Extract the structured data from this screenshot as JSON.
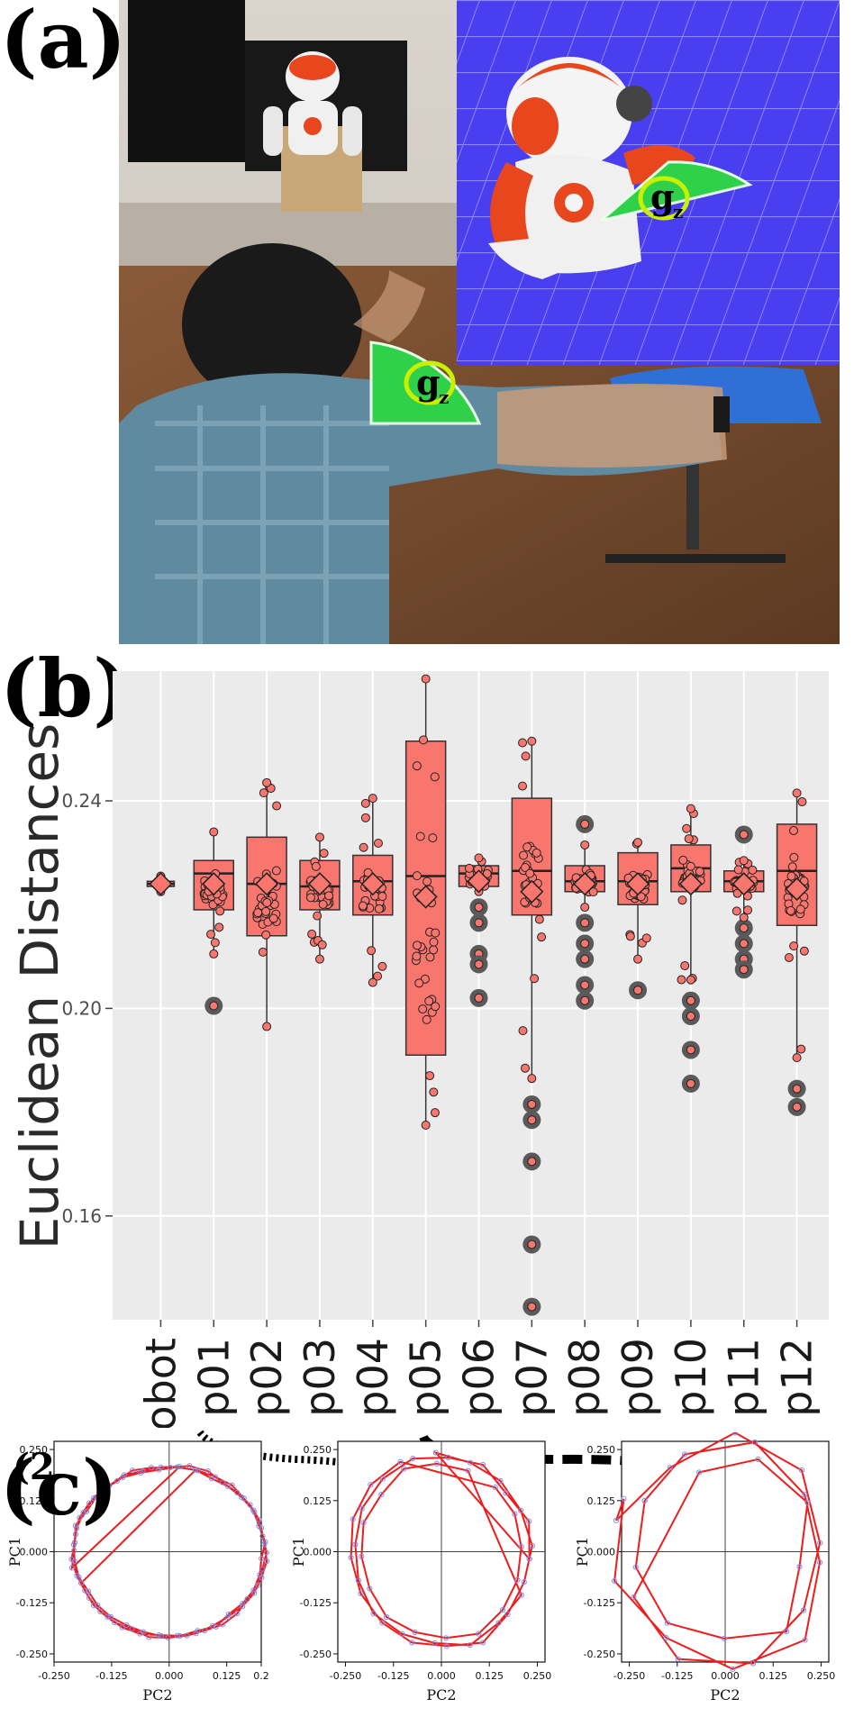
{
  "panel_labels": {
    "a": "(a)",
    "b": "(b)",
    "c": "(c)"
  },
  "photo": {
    "gz_label_sim": "g",
    "gz_label_sim_sub": "z",
    "gz_label_real": "g",
    "gz_label_real_sub": "z",
    "colors": {
      "sim_floor": "#4a3ff0",
      "gz_fill": "#2fd14a",
      "robot_orange": "#e8461d",
      "shirt": "#5f8aa0"
    }
  },
  "chart_data": [
    {
      "type": "box",
      "title": "",
      "xlabel": "",
      "ylabel": "Euclidean Distances",
      "ylim": [
        0.14,
        0.265
      ],
      "yticks": [
        "0.16",
        "0.20",
        "0.24"
      ],
      "categories": [
        "robot",
        "p01",
        "p02",
        "p03",
        "p04",
        "p05",
        "p06",
        "p07",
        "p08",
        "p09",
        "p10",
        "p11",
        "p12"
      ],
      "boxes": [
        {
          "cat": "robot",
          "q1": 0.2235,
          "median": 0.224,
          "q3": 0.2245,
          "whisker_low": 0.2225,
          "whisker_high": 0.2255,
          "mean": 0.224,
          "outliers": []
        },
        {
          "cat": "p01",
          "q1": 0.219,
          "median": 0.226,
          "q3": 0.2285,
          "whisker_low": 0.2105,
          "whisker_high": 0.234,
          "mean": 0.224,
          "outliers": [
            0.2005
          ]
        },
        {
          "cat": "p02",
          "q1": 0.214,
          "median": 0.224,
          "q3": 0.233,
          "whisker_low": 0.1965,
          "whisker_high": 0.2435,
          "mean": 0.224,
          "outliers": []
        },
        {
          "cat": "p03",
          "q1": 0.219,
          "median": 0.2235,
          "q3": 0.2285,
          "whisker_low": 0.2095,
          "whisker_high": 0.233,
          "mean": 0.224,
          "outliers": []
        },
        {
          "cat": "p04",
          "q1": 0.218,
          "median": 0.2245,
          "q3": 0.2295,
          "whisker_low": 0.205,
          "whisker_high": 0.2405,
          "mean": 0.224,
          "outliers": []
        },
        {
          "cat": "p05",
          "q1": 0.191,
          "median": 0.2255,
          "q3": 0.2515,
          "whisker_low": 0.1775,
          "whisker_high": 0.2635,
          "mean": 0.2215,
          "outliers": []
        },
        {
          "cat": "p06",
          "q1": 0.2235,
          "median": 0.226,
          "q3": 0.2275,
          "whisker_low": 0.2225,
          "whisker_high": 0.229,
          "mean": 0.2245,
          "outliers": [
            0.2195,
            0.2165,
            0.2105,
            0.2085,
            0.202
          ]
        },
        {
          "cat": "p07",
          "q1": 0.218,
          "median": 0.2265,
          "q3": 0.2405,
          "whisker_low": 0.1865,
          "whisker_high": 0.2515,
          "mean": 0.2225,
          "outliers": [
            0.1815,
            0.1785,
            0.1705,
            0.1545,
            0.1425
          ]
        },
        {
          "cat": "p08",
          "q1": 0.2225,
          "median": 0.2245,
          "q3": 0.2275,
          "whisker_low": 0.2195,
          "whisker_high": 0.2315,
          "mean": 0.224,
          "outliers": [
            0.2355,
            0.2165,
            0.2125,
            0.2095,
            0.2045,
            0.2015
          ]
        },
        {
          "cat": "p09",
          "q1": 0.22,
          "median": 0.2245,
          "q3": 0.23,
          "whisker_low": 0.2095,
          "whisker_high": 0.232,
          "mean": 0.224,
          "outliers": [
            0.2035
          ]
        },
        {
          "cat": "p10",
          "q1": 0.2225,
          "median": 0.227,
          "q3": 0.2315,
          "whisker_low": 0.2055,
          "whisker_high": 0.2385,
          "mean": 0.224,
          "outliers": [
            0.2015,
            0.1985,
            0.192,
            0.1855
          ]
        },
        {
          "cat": "p11",
          "q1": 0.2225,
          "median": 0.2245,
          "q3": 0.2265,
          "whisker_low": 0.2175,
          "whisker_high": 0.2285,
          "mean": 0.224,
          "outliers": [
            0.2335,
            0.2155,
            0.2125,
            0.2095,
            0.2075
          ]
        },
        {
          "cat": "p12",
          "q1": 0.216,
          "median": 0.2265,
          "q3": 0.2355,
          "whisker_low": 0.1905,
          "whisker_high": 0.2415,
          "mean": 0.223,
          "outliers": [
            0.1845,
            0.181
          ]
        }
      ],
      "grid": true,
      "colors": {
        "box_fill": "#f8766d",
        "box_line": "#333333",
        "panel_bg": "#ebebeb",
        "outlier": "#555555"
      }
    },
    {
      "type": "line",
      "title": "",
      "xlabel": "PC2",
      "ylabel": "PC1",
      "xlim": [
        -0.25,
        0.2
      ],
      "ylim": [
        -0.27,
        0.27
      ],
      "xticks": [
        "-0.250",
        "-0.125",
        "0.000",
        "0.125",
        "0.2"
      ],
      "yticks": [
        "0.250",
        "0.125",
        "0.000",
        "-0.125",
        "-0.250"
      ],
      "overlay_label": "(2",
      "trajectory": {
        "loops": 3,
        "radius": 0.21,
        "points_per_loop": 32,
        "variation": 0.01
      }
    },
    {
      "type": "line",
      "title": "",
      "xlabel": "PC2",
      "ylabel": "PC1",
      "xlim": [
        -0.27,
        0.27
      ],
      "ylim": [
        -0.27,
        0.27
      ],
      "xticks": [
        "-0.250",
        "-0.125",
        "0.000",
        "0.125",
        "0.250"
      ],
      "yticks": [
        "0.250",
        "0.125",
        "0.000",
        "-0.125",
        "-0.250"
      ],
      "trajectory": {
        "loops": 3,
        "radius": 0.23,
        "points_per_loop": 16,
        "variation": 0.02
      }
    },
    {
      "type": "line",
      "title": "",
      "xlabel": "PC2",
      "ylabel": "PC1",
      "xlim": [
        -0.27,
        0.27
      ],
      "ylim": [
        -0.27,
        0.27
      ],
      "xticks": [
        "-0.250",
        "-0.125",
        "0.000",
        "0.125",
        "0.250"
      ],
      "yticks": [
        "0.250",
        "0.125",
        "0.000",
        "-0.125",
        "-0.250"
      ],
      "trajectory": {
        "loops": 3,
        "radius": 0.22,
        "points_per_loop": 9,
        "variation": 0.06
      }
    }
  ]
}
